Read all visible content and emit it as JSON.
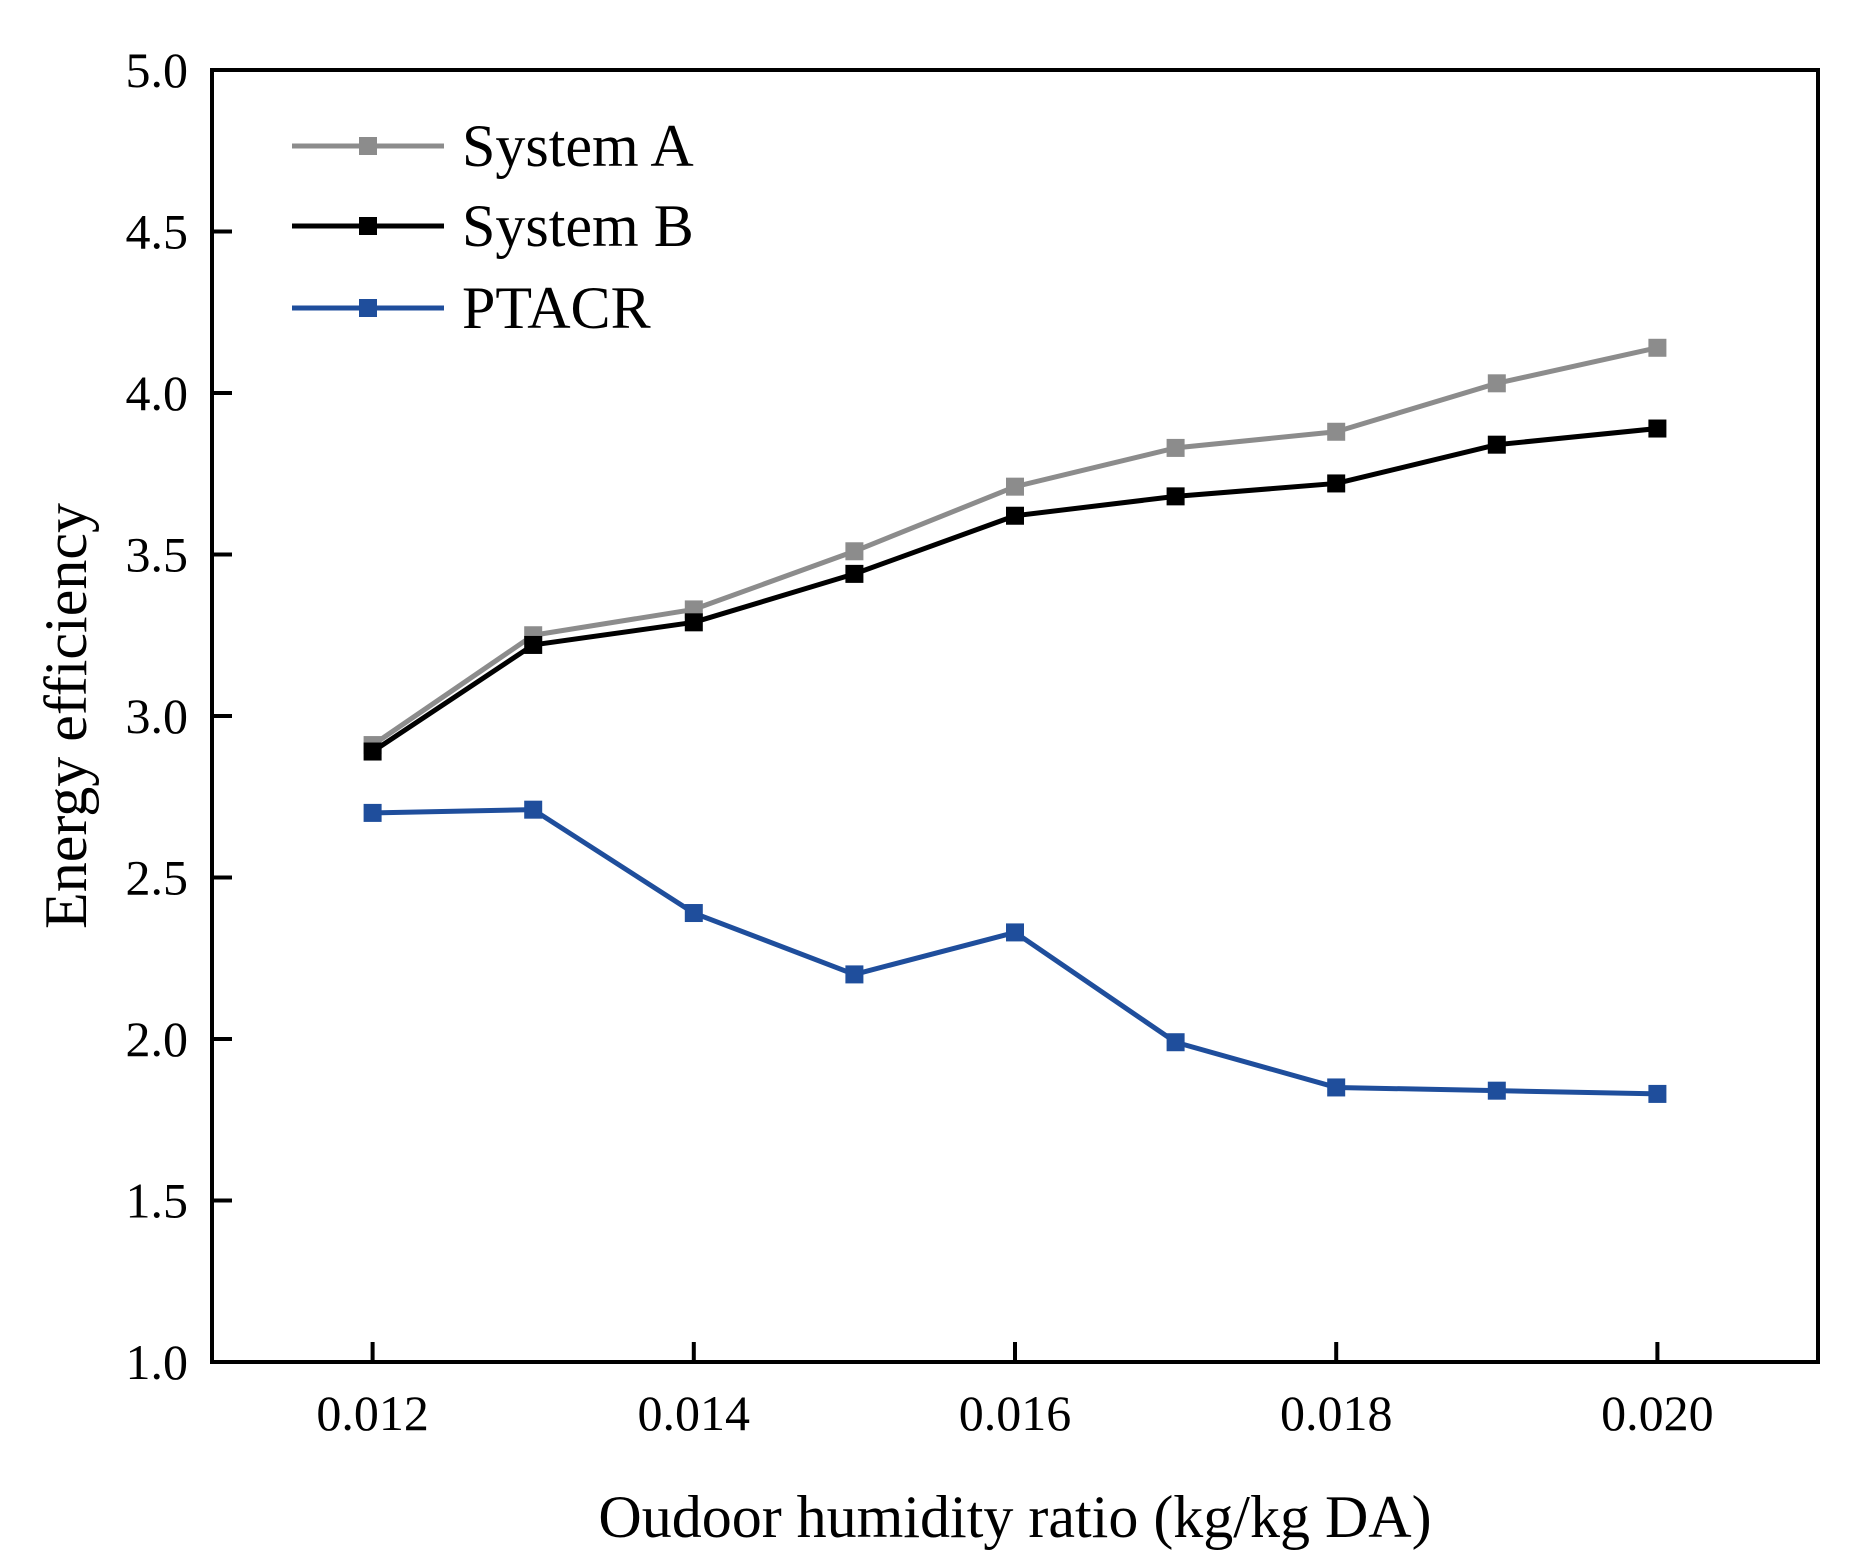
{
  "chart_data": {
    "type": "line",
    "title": "",
    "xlabel": "Oudoor humidity ratio (kg/kg DA)",
    "ylabel": "Energy efficiency",
    "xlim": [
      0.011,
      0.021
    ],
    "ylim": [
      1.0,
      5.0
    ],
    "xticks": [
      "0.012",
      "0.014",
      "0.016",
      "0.018",
      "0.020"
    ],
    "xtick_values": [
      0.012,
      0.014,
      0.016,
      0.018,
      0.02
    ],
    "yticks": [
      "1.0",
      "1.5",
      "2.0",
      "2.5",
      "3.0",
      "3.5",
      "4.0",
      "4.5",
      "5.0"
    ],
    "ytick_values": [
      1.0,
      1.5,
      2.0,
      2.5,
      3.0,
      3.5,
      4.0,
      4.5,
      5.0
    ],
    "x": [
      0.012,
      0.013,
      0.014,
      0.015,
      0.016,
      0.017,
      0.018,
      0.019,
      0.02
    ],
    "legend_position": "top-left",
    "grid": false,
    "series": [
      {
        "name": "System A",
        "color": "#8c8c8c",
        "values": [
          2.91,
          3.25,
          3.33,
          3.51,
          3.71,
          3.83,
          3.88,
          4.03,
          4.14
        ]
      },
      {
        "name": "System B",
        "color": "#000000",
        "values": [
          2.89,
          3.22,
          3.29,
          3.44,
          3.62,
          3.68,
          3.72,
          3.84,
          3.89
        ]
      },
      {
        "name": "PTACR",
        "color": "#1f4e9c",
        "values": [
          2.7,
          2.71,
          2.39,
          2.2,
          2.33,
          1.99,
          1.85,
          1.84,
          1.83
        ]
      }
    ]
  }
}
